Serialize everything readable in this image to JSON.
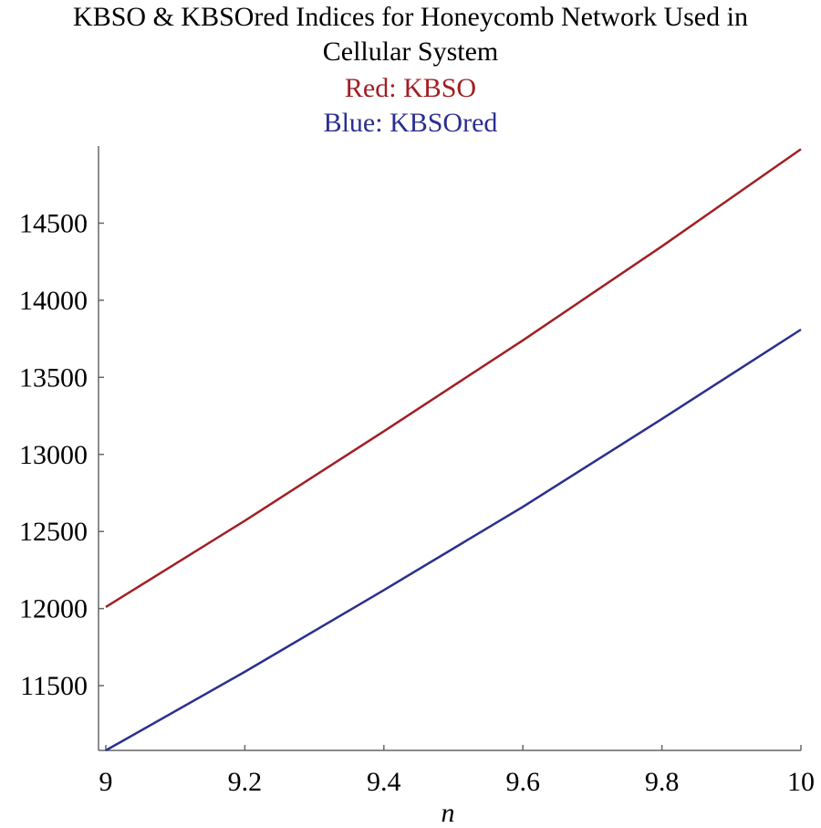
{
  "chart_data": {
    "type": "line",
    "title": "KBSO & KBSOred Indices for Honeycomb Network Used in",
    "title_line2": "Cellular System",
    "legend_red": "Red: KBSO",
    "legend_blue": "Blue: KBSOred",
    "xlabel": "n",
    "ylabel": "",
    "xlim": [
      9,
      10
    ],
    "ylim": [
      11080,
      15000
    ],
    "x_ticks": [
      9,
      9.2,
      9.4,
      9.6,
      9.8,
      10
    ],
    "x_tick_labels": [
      "9",
      "9.2",
      "9.4",
      "9.6",
      "9.8",
      "10"
    ],
    "y_ticks": [
      11500,
      12000,
      12500,
      13000,
      13500,
      14000,
      14500
    ],
    "y_tick_labels": [
      "11500",
      "12000",
      "12500",
      "13000",
      "13500",
      "14000",
      "14500"
    ],
    "grid": false,
    "series": [
      {
        "name": "KBSO",
        "color": "#a11f23",
        "x": [
          9,
          9.2,
          9.4,
          9.6,
          9.8,
          10
        ],
        "values": [
          12010,
          12570,
          13150,
          13740,
          14350,
          14980
        ]
      },
      {
        "name": "KBSOred",
        "color": "#2b2f8f",
        "x": [
          9,
          9.2,
          9.4,
          9.6,
          9.8,
          10
        ],
        "values": [
          11080,
          11590,
          12120,
          12660,
          13230,
          13810
        ]
      }
    ]
  }
}
